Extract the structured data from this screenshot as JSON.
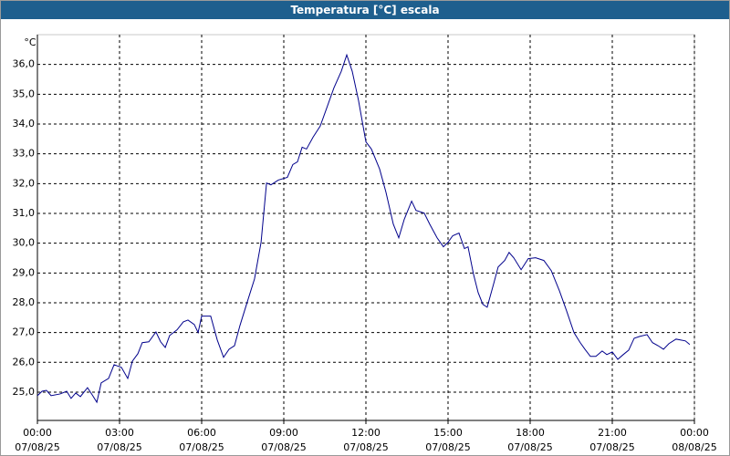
{
  "chart_data": {
    "type": "line",
    "title": "Temperatura [°C] escala",
    "y_label": "°C",
    "x": [
      0,
      0.17,
      0.33,
      0.5,
      0.83,
      1.07,
      1.23,
      1.4,
      1.57,
      1.83,
      2.0,
      2.17,
      2.33,
      2.6,
      2.8,
      3.07,
      3.3,
      3.47,
      3.67,
      3.83,
      4.07,
      4.33,
      4.5,
      4.67,
      4.83,
      5.1,
      5.33,
      5.5,
      5.73,
      5.87,
      6.0,
      6.33,
      6.57,
      6.8,
      7.0,
      7.2,
      7.4,
      7.67,
      7.93,
      8.17,
      8.37,
      8.53,
      8.8,
      9.13,
      9.33,
      9.5,
      9.67,
      9.83,
      10.07,
      10.33,
      10.57,
      10.83,
      11.1,
      11.3,
      11.5,
      11.73,
      12.0,
      12.2,
      12.5,
      12.73,
      13.0,
      13.2,
      13.4,
      13.67,
      13.83,
      14.13,
      14.33,
      14.6,
      14.83,
      15.0,
      15.17,
      15.4,
      15.6,
      15.73,
      15.93,
      16.1,
      16.27,
      16.43,
      16.67,
      16.83,
      17.07,
      17.23,
      17.4,
      17.67,
      17.93,
      18.2,
      18.5,
      18.77,
      19.07,
      19.33,
      19.6,
      19.83,
      20.0,
      20.2,
      20.4,
      20.63,
      20.8,
      21.0,
      21.2,
      21.4,
      21.6,
      21.8,
      22.0,
      22.27,
      22.47,
      22.67,
      22.87,
      23.07,
      23.33,
      23.67,
      23.83
    ],
    "series": [
      {
        "name": "Temperatura",
        "color": "#00008b",
        "values": [
          24.88,
          25.03,
          25.06,
          24.88,
          24.94,
          25.03,
          24.79,
          24.97,
          24.85,
          25.15,
          24.91,
          24.66,
          25.31,
          25.46,
          25.92,
          25.83,
          25.46,
          26.04,
          26.29,
          26.66,
          26.69,
          27.02,
          26.69,
          26.5,
          26.9,
          27.09,
          27.36,
          27.42,
          27.27,
          27.0,
          27.55,
          27.55,
          26.75,
          26.17,
          26.44,
          26.56,
          27.24,
          28.04,
          28.8,
          30.03,
          32.02,
          31.96,
          32.12,
          32.21,
          32.64,
          32.73,
          33.22,
          33.16,
          33.56,
          33.93,
          34.54,
          35.21,
          35.77,
          36.32,
          35.77,
          34.79,
          33.4,
          33.16,
          32.49,
          31.72,
          30.64,
          30.18,
          30.8,
          31.41,
          31.1,
          31.01,
          30.64,
          30.18,
          29.88,
          30.03,
          30.25,
          30.34,
          29.82,
          29.88,
          28.96,
          28.34,
          27.95,
          27.85,
          28.65,
          29.2,
          29.42,
          29.69,
          29.51,
          29.11,
          29.48,
          29.51,
          29.42,
          29.08,
          28.4,
          27.73,
          27.0,
          26.66,
          26.44,
          26.2,
          26.2,
          26.38,
          26.26,
          26.35,
          26.1,
          26.26,
          26.41,
          26.81,
          26.87,
          26.93,
          26.66,
          26.56,
          26.44,
          26.63,
          26.78,
          26.72,
          26.6
        ]
      }
    ],
    "xlim": [
      0,
      24
    ],
    "ylim": [
      24.05,
      37.0
    ],
    "xticks": [
      {
        "value": 0,
        "label": "00:00\n07/08/25"
      },
      {
        "value": 3,
        "label": "03:00\n07/08/25"
      },
      {
        "value": 6,
        "label": "06:00\n07/08/25"
      },
      {
        "value": 9,
        "label": "09:00\n07/08/25"
      },
      {
        "value": 12,
        "label": "12:00\n07/08/25"
      },
      {
        "value": 15,
        "label": "15:00\n07/08/25"
      },
      {
        "value": 18,
        "label": "18:00\n07/08/25"
      },
      {
        "value": 21,
        "label": "21:00\n07/08/25"
      },
      {
        "value": 24,
        "label": "00:00\n08/08/25"
      }
    ],
    "yticks": [
      {
        "value": 25,
        "label": "25,0"
      },
      {
        "value": 26,
        "label": "26,0"
      },
      {
        "value": 27,
        "label": "27,0"
      },
      {
        "value": 28,
        "label": "28,0"
      },
      {
        "value": 29,
        "label": "29,0"
      },
      {
        "value": 30,
        "label": "30,0"
      },
      {
        "value": 31,
        "label": "31,0"
      },
      {
        "value": 32,
        "label": "32,0"
      },
      {
        "value": 33,
        "label": "33,0"
      },
      {
        "value": 34,
        "label": "34,0"
      },
      {
        "value": 35,
        "label": "35,0"
      },
      {
        "value": 36,
        "label": "36,0"
      }
    ],
    "grid": true
  }
}
